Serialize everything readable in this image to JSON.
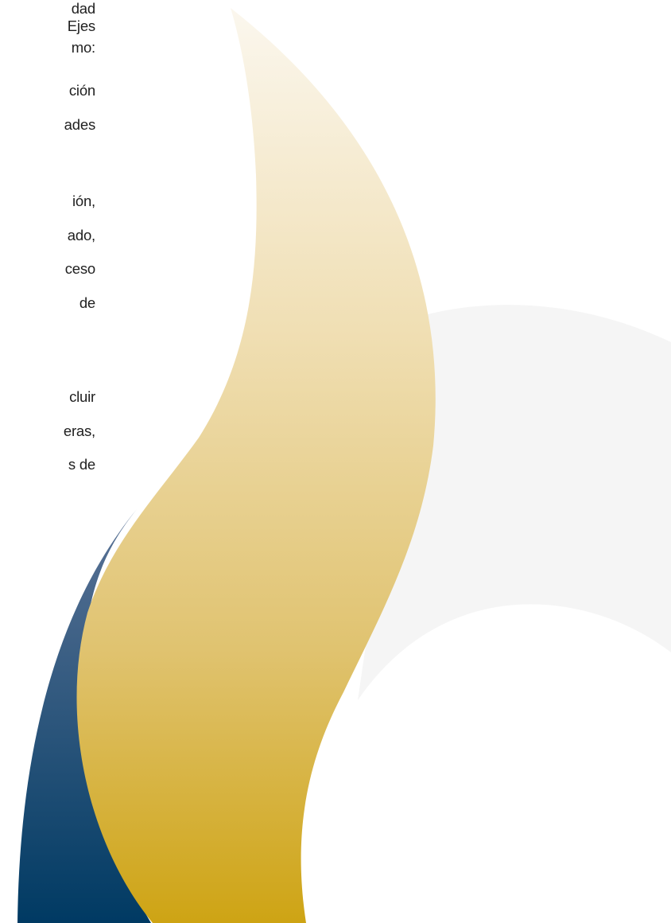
{
  "paragraphs": [
    {
      "lines": [
        "dad",
        "Ejes",
        "mo:",
        "ción",
        "ades"
      ]
    },
    {
      "lines": [
        "ión,",
        "ado,",
        "ceso",
        "de"
      ]
    },
    {
      "lines": [
        "cluir",
        "eras,",
        "s de"
      ]
    }
  ],
  "colors": {
    "gold_light": "#fbf7ee",
    "gold_dark": "#cea414",
    "navy_light": "#5b7396",
    "navy_dark": "#003a63",
    "arc_gray": "#f1f1f1"
  }
}
